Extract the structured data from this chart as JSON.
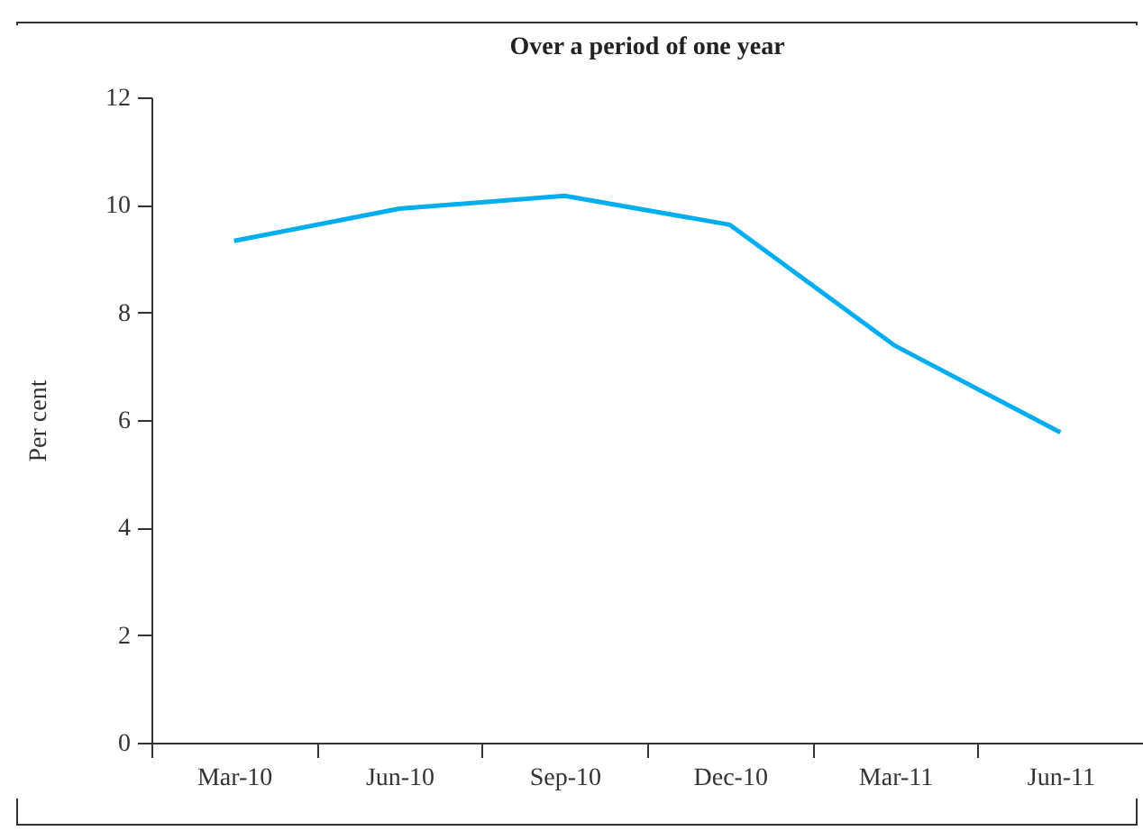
{
  "chart_data": {
    "type": "line",
    "title": "Over a period of one year",
    "ylabel": "Per cent",
    "categories": [
      "Mar-10",
      "Jun-10",
      "Sep-10",
      "Dec-10",
      "Mar-11",
      "Jun-11"
    ],
    "series": [
      {
        "color": "#00aeef",
        "values": [
          9.33,
          9.93,
          10.17,
          9.63,
          7.38,
          5.77
        ]
      }
    ],
    "ylim": [
      0,
      12
    ],
    "yticks": [
      0,
      2,
      4,
      6,
      8,
      10,
      12
    ],
    "grid": false,
    "marker": "none",
    "line_style": "solid"
  }
}
